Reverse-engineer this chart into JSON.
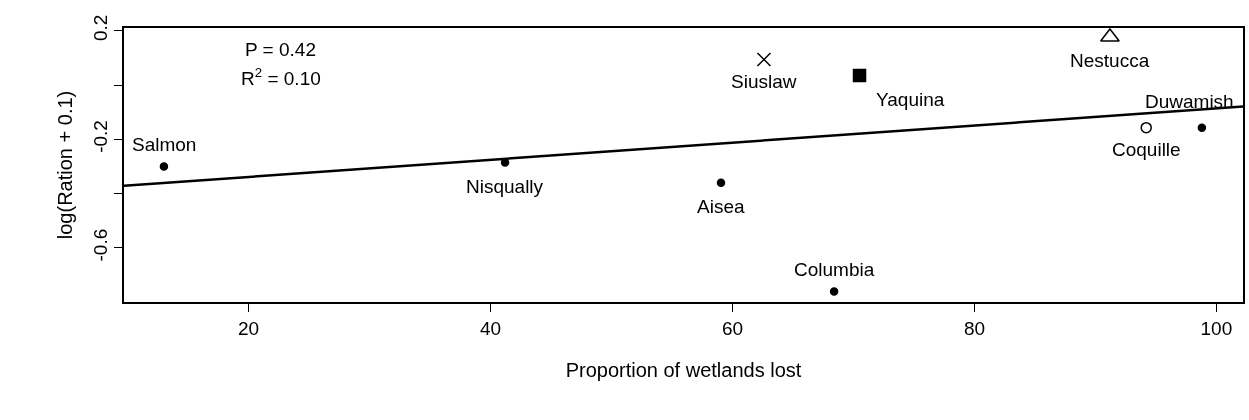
{
  "chart_data": {
    "type": "scatter",
    "xlabel": "Proportion of wetlands lost",
    "ylabel": "log(Ration + 0.1)",
    "xlim": [
      9.7,
      102.2
    ],
    "ylim": [
      -0.799,
      0.21
    ],
    "xticks": [
      20,
      40,
      60,
      80,
      100
    ],
    "yticks": [
      0.2,
      {
        "value": 0,
        "label": null
      },
      -0.2,
      {
        "value": -0.4,
        "label": null
      },
      -0.6
    ],
    "grid": false,
    "legend": false,
    "annotations": [
      "P = 0.42",
      "R$^{2}$ = 0.10"
    ],
    "series": [
      {
        "name": "Salmon",
        "color": "#000000",
        "marker": "circle",
        "x": [
          13.0
        ],
        "values": [
          -0.3
        ]
      },
      {
        "name": "Nisqually",
        "color": "#000000",
        "marker": "circle",
        "x": [
          41.2
        ],
        "values": [
          -0.285
        ]
      },
      {
        "name": "Aisea",
        "color": "#000000",
        "marker": "circle",
        "x": [
          59.05
        ],
        "values": [
          -0.36
        ]
      },
      {
        "name": "Siuslaw",
        "color": "#000000",
        "marker": "cross",
        "x": [
          62.6
        ],
        "values": [
          0.094
        ]
      },
      {
        "name": "Yaquina",
        "color": "#000000",
        "marker": "square",
        "x": [
          70.5
        ],
        "values": [
          0.035
        ]
      },
      {
        "name": "Columbia",
        "color": "#000000",
        "marker": "circle",
        "x": [
          68.4
        ],
        "values": [
          -0.76
        ]
      },
      {
        "name": "Nestucca",
        "color": "#000000",
        "marker": "triangle",
        "x": [
          91.2
        ],
        "values": [
          0.177
        ]
      },
      {
        "name": "Coquille",
        "color": "#000000",
        "marker": "circle",
        "x": [
          94.2
        ],
        "values": [
          -0.157
        ]
      },
      {
        "name": "Duwamish",
        "color": "#000000",
        "marker": "circle",
        "x": [
          98.8
        ],
        "values": [
          -0.157
        ]
      },
      {
        "type": "line",
        "color": "#000000",
        "marker": "none",
        "line_style": "solid",
        "x": [
          9.7,
          102.2
        ],
        "values": [
          -0.371,
          -0.079
        ]
      }
    ]
  }
}
